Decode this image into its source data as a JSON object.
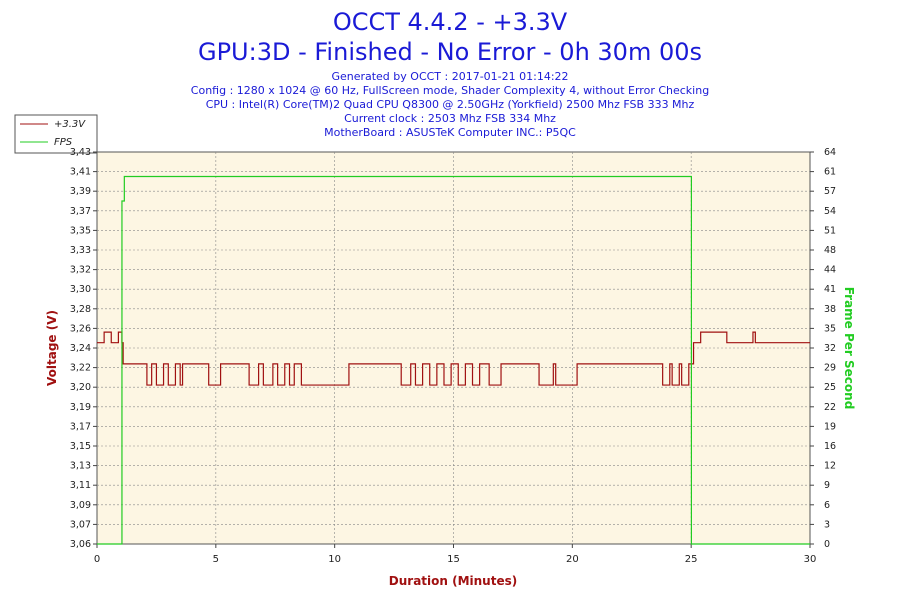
{
  "title_lines": [
    "OCCT 4.4.2 - +3.3V",
    "GPU:3D - Finished - No Error - 0h 30m 00s"
  ],
  "info_lines": [
    "Generated by OCCT : 2017-01-21 01:14:22",
    "Config : 1280 x 1024 @ 60 Hz, FullScreen mode, Shader Complexity 4, without Error Checking",
    "CPU : Intel(R) Core(TM)2 Quad CPU Q8300 @ 2.50GHz (Yorkfield) 2500 Mhz FSB 333 Mhz",
    "Current clock : 2503 Mhz FSB 334 Mhz",
    "MotherBoard : ASUSTeK Computer INC.: P5QC"
  ],
  "colors": {
    "voltage": "#a01010",
    "fps": "#22cc22",
    "plot_bg": "#fdf6e3",
    "grid": "#888888",
    "title": "#1a1ad6"
  },
  "chart_data": {
    "type": "line",
    "xlabel": "Duration (Minutes)",
    "ylabel_left": "Voltage (V)",
    "ylabel_right": "Frame Per Second",
    "xlim": [
      0,
      30
    ],
    "ylim_left": [
      3.06,
      3.43
    ],
    "ylim_right": [
      0,
      64
    ],
    "x_ticks": [
      0,
      5,
      10,
      15,
      20,
      25,
      30
    ],
    "y_ticks_left": [
      "3,06",
      "3,07",
      "3,09",
      "3,11",
      "3,13",
      "3,15",
      "3,17",
      "3,19",
      "3,20",
      "3,22",
      "3,24",
      "3,26",
      "3,28",
      "3,30",
      "3,32",
      "3,33",
      "3,35",
      "3,37",
      "3,39",
      "3,41",
      "3,43"
    ],
    "y_ticks_right": [
      "0",
      "3",
      "6",
      "9",
      "12",
      "16",
      "19",
      "22",
      "25",
      "29",
      "32",
      "35",
      "38",
      "41",
      "44",
      "48",
      "51",
      "54",
      "57",
      "61",
      "64"
    ],
    "grid": true,
    "legend_position": "top-left",
    "series": [
      {
        "name": "+3.3V",
        "axis": "left",
        "x": [
          0,
          0.3,
          0.6,
          0.9,
          1.05,
          1.1,
          2.0,
          2.1,
          2.3,
          2.5,
          2.8,
          3.0,
          3.3,
          3.5,
          3.6,
          4.6,
          4.7,
          5.1,
          5.2,
          6.3,
          6.4,
          6.8,
          7.0,
          7.4,
          7.6,
          7.9,
          8.1,
          8.3,
          8.6,
          8.7,
          9.0,
          10.4,
          10.6,
          12.7,
          12.8,
          13.2,
          13.4,
          13.7,
          14.0,
          14.3,
          14.6,
          14.9,
          15.2,
          15.5,
          15.8,
          16.1,
          16.5,
          17.0,
          17.5,
          18.5,
          18.6,
          19.2,
          19.3,
          20.2,
          20.3,
          23.7,
          23.8,
          24.1,
          24.2,
          24.5,
          24.6,
          24.9,
          25.0,
          25.1,
          25.3,
          25.4,
          26.4,
          26.5,
          27.6,
          27.7,
          30.0
        ],
        "y": [
          3.25,
          3.26,
          3.25,
          3.26,
          3.25,
          3.23,
          3.23,
          3.21,
          3.23,
          3.21,
          3.23,
          3.21,
          3.23,
          3.21,
          3.23,
          3.23,
          3.21,
          3.21,
          3.23,
          3.23,
          3.21,
          3.23,
          3.21,
          3.23,
          3.21,
          3.23,
          3.21,
          3.23,
          3.21,
          3.21,
          3.21,
          3.21,
          3.23,
          3.23,
          3.21,
          3.23,
          3.21,
          3.23,
          3.21,
          3.23,
          3.21,
          3.23,
          3.21,
          3.23,
          3.21,
          3.23,
          3.21,
          3.23,
          3.23,
          3.23,
          3.21,
          3.23,
          3.21,
          3.23,
          3.23,
          3.23,
          3.21,
          3.23,
          3.21,
          3.23,
          3.21,
          3.23,
          3.23,
          3.25,
          3.25,
          3.26,
          3.26,
          3.25,
          3.26,
          3.25,
          3.25
        ]
      },
      {
        "name": "FPS",
        "axis": "right",
        "x": [
          0,
          1.0,
          1.05,
          1.15,
          25.0,
          25.01,
          30.0
        ],
        "y": [
          0,
          0,
          56,
          60,
          60,
          0,
          0
        ]
      }
    ]
  }
}
